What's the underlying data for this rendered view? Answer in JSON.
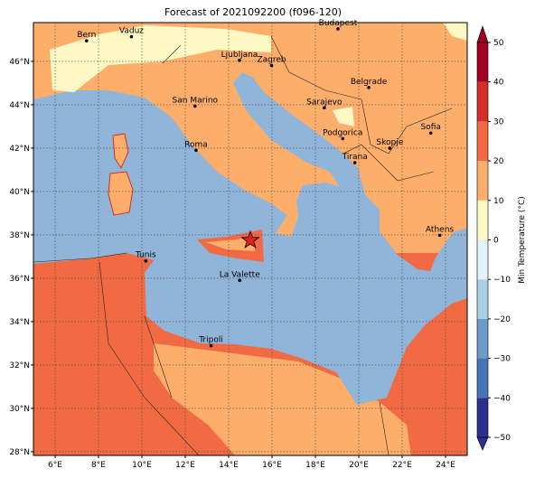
{
  "title": "Forecast of 2021092200 (f096-120)",
  "map": {
    "xlim": [
      5,
      25
    ],
    "ylim": [
      27.83,
      47.79
    ],
    "xticks": [
      {
        "value": 6,
        "label": "6°E"
      },
      {
        "value": 8,
        "label": "8°E"
      },
      {
        "value": 10,
        "label": "10°E"
      },
      {
        "value": 12,
        "label": "12°E"
      },
      {
        "value": 14,
        "label": "14°E"
      },
      {
        "value": 16,
        "label": "16°E"
      },
      {
        "value": 18,
        "label": "18°E"
      },
      {
        "value": 20,
        "label": "20°E"
      },
      {
        "value": 22,
        "label": "22°E"
      },
      {
        "value": 24,
        "label": "24°E"
      }
    ],
    "yticks": [
      {
        "value": 28,
        "label": "28°N"
      },
      {
        "value": 30,
        "label": "30°N"
      },
      {
        "value": 32,
        "label": "32°N"
      },
      {
        "value": 34,
        "label": "34°N"
      },
      {
        "value": 36,
        "label": "36°N"
      },
      {
        "value": 38,
        "label": "38°N"
      },
      {
        "value": 40,
        "label": "40°N"
      },
      {
        "value": 42,
        "label": "42°N"
      },
      {
        "value": 44,
        "label": "44°N"
      },
      {
        "value": 46,
        "label": "46°N"
      }
    ],
    "grid": true,
    "cities": [
      {
        "name": "Bern",
        "lon": 7.45,
        "lat": 46.95
      },
      {
        "name": "Vaduz",
        "lon": 9.52,
        "lat": 47.14
      },
      {
        "name": "Budapest",
        "lon": 19.04,
        "lat": 47.5
      },
      {
        "name": "Ljubljana",
        "lon": 14.5,
        "lat": 46.05
      },
      {
        "name": "Zagreb",
        "lon": 15.98,
        "lat": 45.81
      },
      {
        "name": "Belgrade",
        "lon": 20.46,
        "lat": 44.8
      },
      {
        "name": "San Marino",
        "lon": 12.45,
        "lat": 43.94
      },
      {
        "name": "Sarajevo",
        "lon": 18.41,
        "lat": 43.86
      },
      {
        "name": "Sofia",
        "lon": 23.32,
        "lat": 42.7
      },
      {
        "name": "Podgorica",
        "lon": 19.26,
        "lat": 42.44
      },
      {
        "name": "Skopje",
        "lon": 21.43,
        "lat": 42.0
      },
      {
        "name": "Roma",
        "lon": 12.5,
        "lat": 41.9
      },
      {
        "name": "Tirana",
        "lon": 19.82,
        "lat": 41.33
      },
      {
        "name": "Athens",
        "lon": 23.73,
        "lat": 37.98
      },
      {
        "name": "Tunis",
        "lon": 10.18,
        "lat": 36.8
      },
      {
        "name": "La Valette",
        "lon": 14.51,
        "lat": 35.9
      },
      {
        "name": "Tripoli",
        "lon": 13.19,
        "lat": 32.89
      }
    ],
    "marker": {
      "lon": 15.0,
      "lat": 37.75,
      "color": "#e8201c"
    }
  },
  "colorbar": {
    "label": "Min Temperature (°C)",
    "ticks": [
      {
        "value": -50,
        "label": "−50"
      },
      {
        "value": -40,
        "label": "−40"
      },
      {
        "value": -30,
        "label": "−30"
      },
      {
        "value": -20,
        "label": "−20"
      },
      {
        "value": -10,
        "label": "−10"
      },
      0,
      10,
      20,
      30,
      40,
      50
    ],
    "colors": [
      "#2c2f8e",
      "#4575b4",
      "#6b9bc9",
      "#a9cfe4",
      "#e3f3f8",
      "#fef8c4",
      "#fdae6b",
      "#f26a43",
      "#d52e26",
      "#a00026"
    ]
  }
}
